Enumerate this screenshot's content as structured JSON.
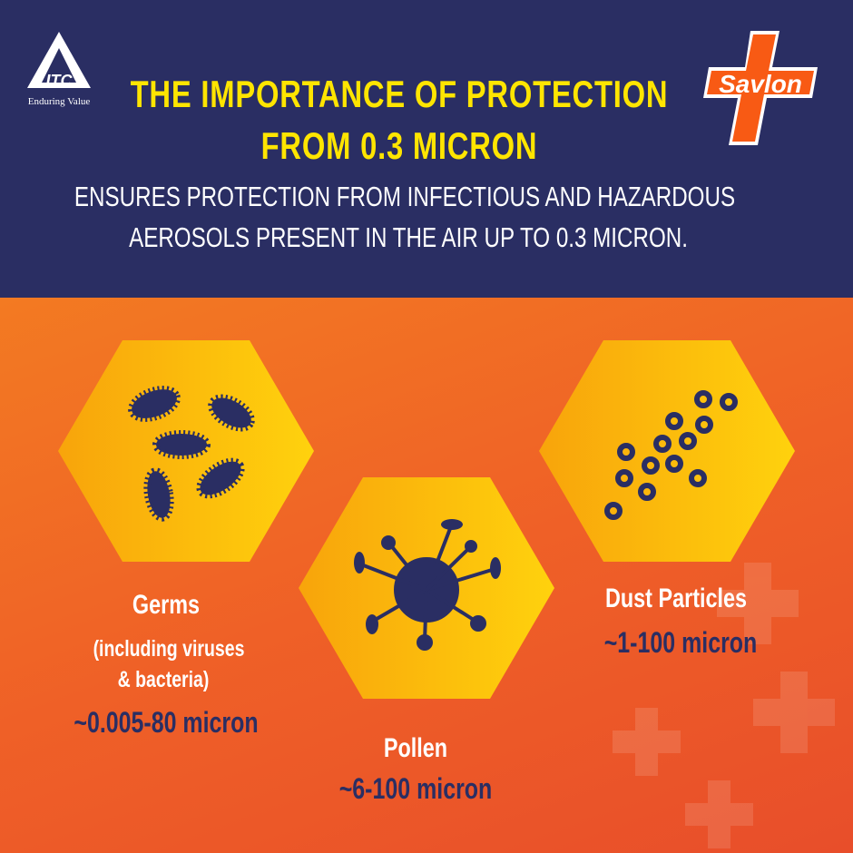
{
  "header": {
    "title_line1": "THE IMPORTANCE OF PROTECTION",
    "title_line2": "FROM 0.3 MICRON",
    "subtitle_line1": "ENSURES PROTECTION FROM INFECTIOUS AND HAZARDOUS",
    "subtitle_line2": "AEROSOLS PRESENT IN THE AIR UP TO 0.3 MICRON."
  },
  "logos": {
    "itc": {
      "mark": "ITC",
      "tagline": "Enduring Value"
    },
    "savlon": "Savlon"
  },
  "items": [
    {
      "name": "Germs",
      "detail_line1": "(including viruses",
      "detail_line2": "& bacteria)",
      "range": "~0.005-80 micron",
      "icon": "germs-icon"
    },
    {
      "name": "Pollen",
      "range": "~6-100 micron",
      "icon": "virus-icon"
    },
    {
      "name": "Dust Particles",
      "range": "~1-100 micron",
      "icon": "dust-particles-icon"
    }
  ],
  "colors": {
    "navy": "#2a2e63",
    "yellow": "#ffe500",
    "orange": "#ef6027",
    "hex_gold": "#ffc20e"
  }
}
